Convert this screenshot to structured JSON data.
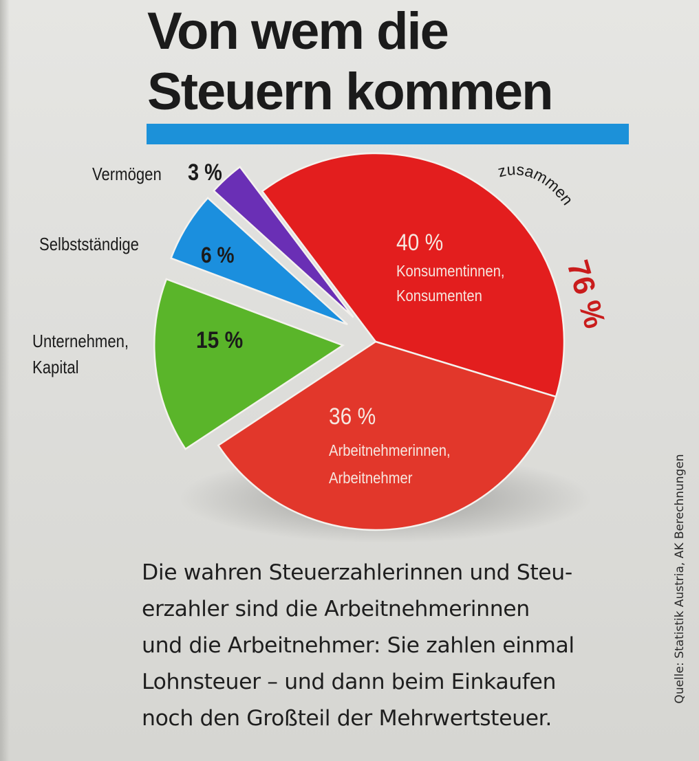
{
  "title": {
    "line1": "Von wem die",
    "line2": "Steuern kommen"
  },
  "chart_data": {
    "type": "pie",
    "unit": "%",
    "slices": [
      {
        "label": "Konsumentinnen, Konsumenten",
        "label_lines": [
          "Konsumentinnen,",
          "Konsumenten"
        ],
        "value": 40,
        "value_label": "40 %",
        "color": "#e31e1e"
      },
      {
        "label": "Arbeitnehmerinnen, Arbeitnehmer",
        "label_lines": [
          "Arbeitnehmerinnen,",
          "Arbeitnehmer"
        ],
        "value": 36,
        "value_label": "36 %",
        "color": "#e2372b"
      },
      {
        "label": "Unternehmen, Kapital",
        "label_lines": [
          "Unternehmen,",
          "Kapital"
        ],
        "value": 15,
        "value_label": "15 %",
        "color": "#5ab52a"
      },
      {
        "label": "Selbstständige",
        "label_lines": [
          "Selbstständige"
        ],
        "value": 6,
        "value_label": "6 %",
        "color": "#1b8fde"
      },
      {
        "label": "Vermögen",
        "label_lines": [
          "Vermögen"
        ],
        "value": 3,
        "value_label": "3 %",
        "color": "#6a2fb5"
      }
    ],
    "group_annotation": {
      "label": "zusammen",
      "value": "76 %",
      "members": [
        "Konsumentinnen, Konsumenten",
        "Arbeitnehmerinnen, Arbeitnehmer"
      ]
    }
  },
  "body_text": [
    "Die wahren Steuerzahlerinnen und Steu-",
    "erzahler sind die Arbeitnehmerinnen",
    "und die Arbeitnehmer: Sie zahlen einmal",
    "Lohnsteuer – und dann beim Einkaufen",
    "noch den Großteil der Mehrwertsteuer."
  ],
  "source": "Quelle: Statistik Austria, AK Berechnungen",
  "colors": {
    "title_bar": "#1c91d9",
    "text": "#1b1b1b",
    "annotation": "#c91c1c"
  }
}
